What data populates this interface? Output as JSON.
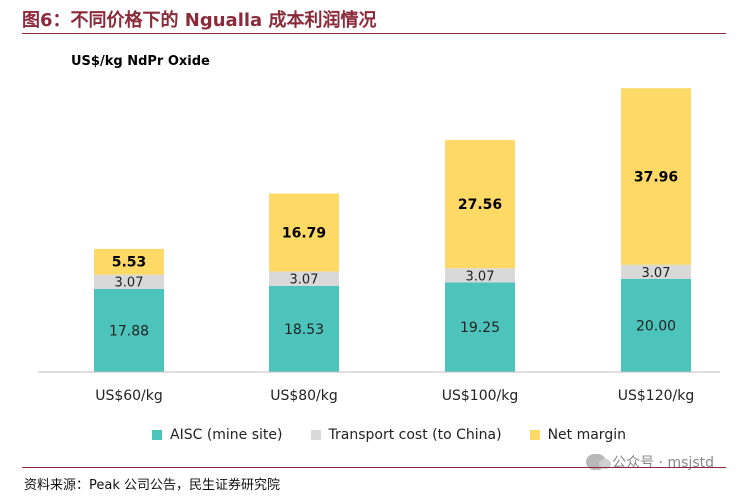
{
  "figure": {
    "title": "图6：不同价格下的 Ngualla 成本利润情况",
    "source": "资料来源：Peak 公司公告，民生证券研究院",
    "watermark": "公众号 · msjstd"
  },
  "chart_data": {
    "type": "bar",
    "stacked": true,
    "ylabel": "US$/kg NdPr Oxide",
    "xlabel": "",
    "categories": [
      "US$60/kg",
      "US$80/kg",
      "US$100/kg",
      "US$120/kg"
    ],
    "ylim": [
      0,
      62
    ],
    "grid": false,
    "legend_position": "bottom",
    "series": [
      {
        "name": "AISC (mine site)",
        "values": [
          17.88,
          18.53,
          19.25,
          20.0
        ],
        "labels": [
          "17.88",
          "18.53",
          "19.25",
          "20.00"
        ],
        "color": "#4cc4bc"
      },
      {
        "name": "Transport cost (to China)",
        "values": [
          3.07,
          3.07,
          3.07,
          3.07
        ],
        "labels": [
          "3.07",
          "3.07",
          "3.07",
          "3.07"
        ],
        "color": "#d9d9d9"
      },
      {
        "name": "Net margin",
        "values": [
          5.53,
          16.79,
          27.56,
          37.96
        ],
        "labels": [
          "5.53",
          "16.79",
          "27.56",
          "37.96"
        ],
        "color": "#ffd966"
      }
    ]
  }
}
